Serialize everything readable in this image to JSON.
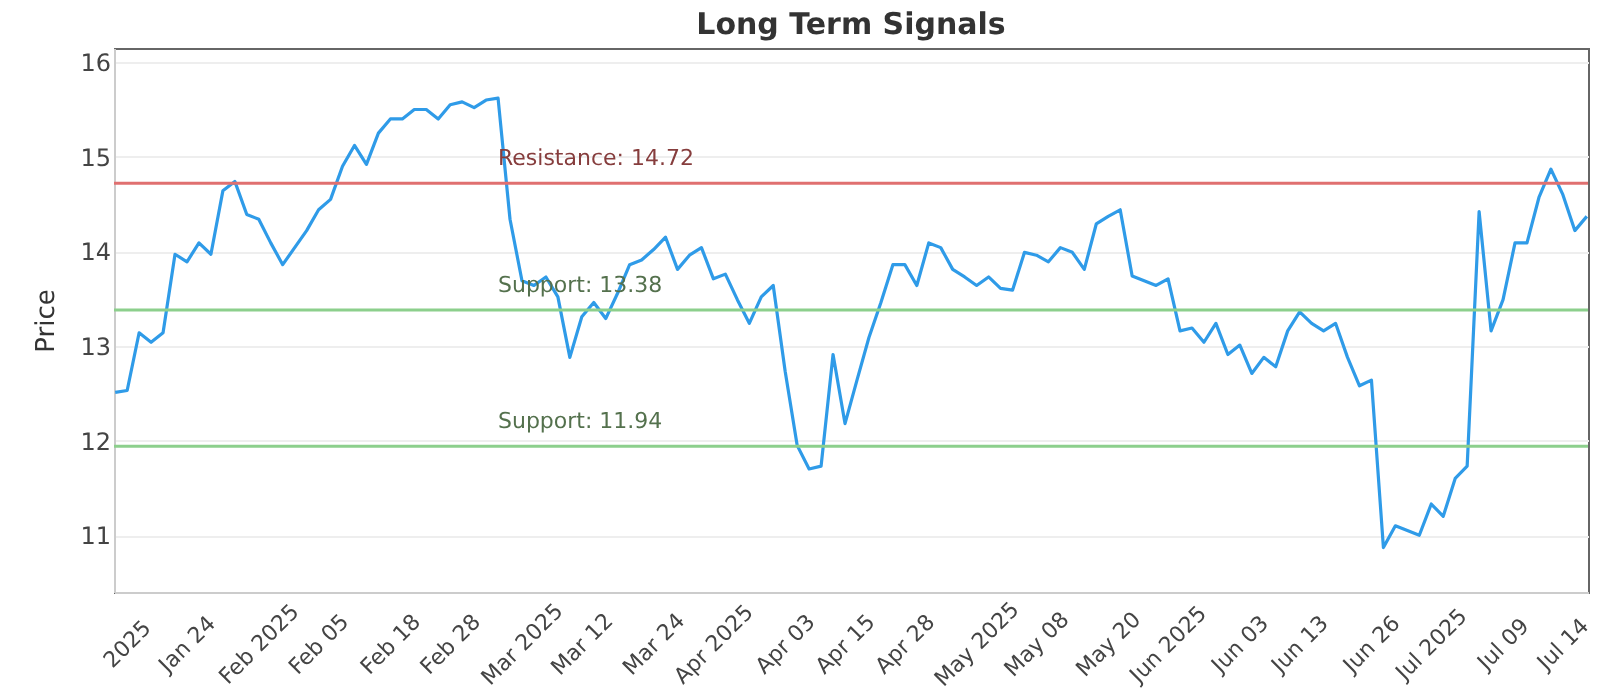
{
  "chart_data": {
    "type": "line",
    "title": "Long Term Signals",
    "ylabel": "Price",
    "categories": [
      null,
      "2025",
      null,
      null,
      null,
      null,
      "Jan 24",
      null,
      null,
      null,
      null,
      null,
      "Feb 2025",
      null,
      null,
      null,
      null,
      "Feb 05",
      null,
      null,
      null,
      null,
      null,
      "Feb 18",
      null,
      null,
      null,
      null,
      "Feb 28",
      null,
      null,
      null,
      null,
      null,
      "Mar 2025",
      null,
      null,
      null,
      null,
      "Mar 12",
      null,
      null,
      null,
      null,
      null,
      "Mar 24",
      null,
      null,
      null,
      null,
      "Apr 2025",
      null,
      null,
      null,
      null,
      null,
      "Apr 03",
      null,
      null,
      null,
      null,
      "Apr 15",
      null,
      null,
      null,
      null,
      "Apr 28",
      null,
      null,
      null,
      null,
      null,
      "May 2025",
      null,
      null,
      null,
      null,
      "May 08",
      null,
      null,
      null,
      null,
      null,
      "May 20",
      null,
      null,
      null,
      null,
      "Jun 2025",
      null,
      null,
      null,
      null,
      null,
      "Jun 03",
      null,
      null,
      null,
      null,
      "Jun 13",
      null,
      null,
      null,
      null,
      null,
      "Jun 26",
      null,
      null,
      null,
      null,
      "Jul 2025",
      null,
      null,
      null,
      null,
      null,
      "Jul 09",
      null,
      null,
      null,
      null,
      "Jul 14",
      null,
      null
    ],
    "series": [
      {
        "color": "#2f9be8",
        "values": [
          12.51,
          12.53,
          13.14,
          13.04,
          13.14,
          13.97,
          13.89,
          14.09,
          13.97,
          14.64,
          14.74,
          14.39,
          14.34,
          14.09,
          13.86,
          14.04,
          14.22,
          14.44,
          14.55,
          14.9,
          15.12,
          14.92,
          15.25,
          15.4,
          15.4,
          15.5,
          15.5,
          15.4,
          15.55,
          15.58,
          15.52,
          15.6,
          15.62,
          14.34,
          13.69,
          13.64,
          13.73,
          13.52,
          12.88,
          13.31,
          13.46,
          13.29,
          13.56,
          13.86,
          13.91,
          14.02,
          14.15,
          13.81,
          13.96,
          14.04,
          13.71,
          13.76,
          13.49,
          13.24,
          13.52,
          13.64,
          12.73,
          11.95,
          11.7,
          11.73,
          12.91,
          12.18,
          12.64,
          13.09,
          13.46,
          13.86,
          13.86,
          13.64,
          14.09,
          14.04,
          13.81,
          13.73,
          13.64,
          13.73,
          13.61,
          13.59,
          13.99,
          13.96,
          13.89,
          14.04,
          13.99,
          13.81,
          14.29,
          14.37,
          14.44,
          13.74,
          13.69,
          13.64,
          13.71,
          13.16,
          13.19,
          13.04,
          13.24,
          12.91,
          13.01,
          12.71,
          12.88,
          12.78,
          13.16,
          13.36,
          13.24,
          13.16,
          13.24,
          12.88,
          12.58,
          12.64,
          10.87,
          11.1,
          11.05,
          11.0,
          11.33,
          11.2,
          11.6,
          11.73,
          14.42,
          13.16,
          13.49,
          14.09,
          14.09,
          14.57,
          14.87,
          14.6,
          14.22,
          14.37
        ]
      }
    ],
    "ylim": [
      10.4,
      16.15
    ],
    "yticks": [
      11,
      12,
      13,
      14,
      15,
      16
    ],
    "grid": "y",
    "marker": "none",
    "line_style": "solid",
    "ref_lines": [
      {
        "axis": "y",
        "value": 14.72,
        "label": "Resistance: 14.72",
        "color": "#e07070"
      },
      {
        "axis": "y",
        "value": 13.38,
        "label": "Support: 13.38",
        "color": "#8ccf8c"
      },
      {
        "axis": "y",
        "value": 11.94,
        "label": "Support: 11.94",
        "color": "#8ccf8c"
      }
    ]
  }
}
